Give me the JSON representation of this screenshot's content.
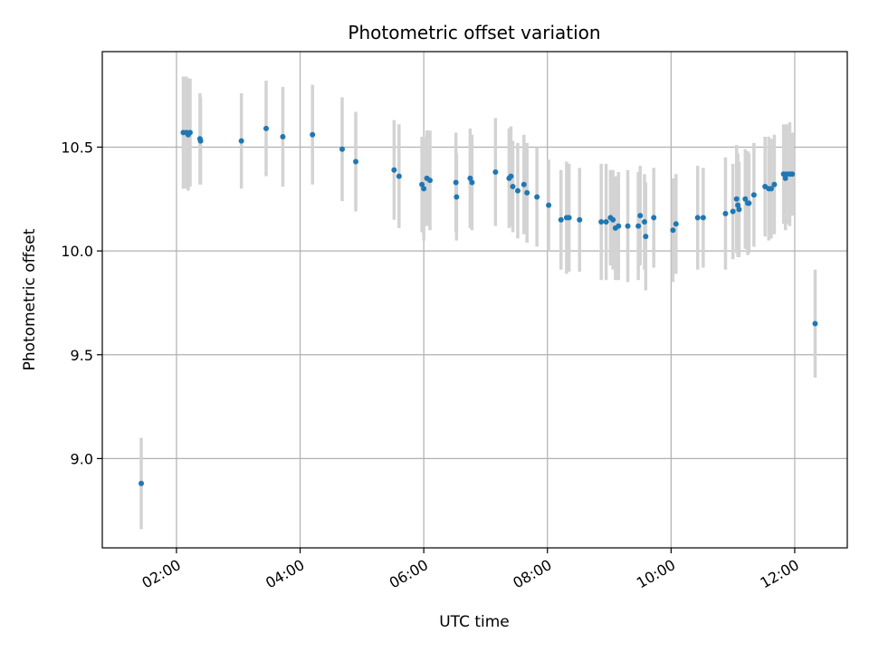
{
  "chart_data": {
    "type": "scatter",
    "title": "Photometric offset variation",
    "xlabel": "UTC time",
    "ylabel": "Photometric offset",
    "xlim": [
      0.8,
      12.85
    ],
    "ylim": [
      8.57,
      10.96
    ],
    "grid": true,
    "x_ticks": [
      {
        "value": 2,
        "label": "02:00"
      },
      {
        "value": 4,
        "label": "04:00"
      },
      {
        "value": 6,
        "label": "06:00"
      },
      {
        "value": 8,
        "label": "08:00"
      },
      {
        "value": 10,
        "label": "10:00"
      },
      {
        "value": 12,
        "label": "12:00"
      }
    ],
    "y_ticks": [
      {
        "value": 9.0,
        "label": "9.0"
      },
      {
        "value": 9.5,
        "label": "9.5"
      },
      {
        "value": 10.0,
        "label": "10.0"
      },
      {
        "value": 10.5,
        "label": "10.5"
      }
    ],
    "marker_color": "#1f77b4",
    "errorbar_color": "#d3d3d3",
    "series": [
      {
        "name": "offset",
        "x": [
          1.43,
          2.11,
          2.16,
          2.19,
          2.22,
          2.38,
          2.39,
          3.05,
          3.45,
          3.72,
          4.2,
          4.68,
          4.9,
          5.52,
          5.6,
          5.97,
          6.0,
          6.05,
          6.1,
          6.52,
          6.53,
          6.75,
          6.78,
          7.16,
          7.38,
          7.41,
          7.44,
          7.52,
          7.62,
          7.67,
          7.83,
          8.02,
          8.22,
          8.31,
          8.35,
          8.52,
          8.87,
          8.95,
          9.02,
          9.06,
          9.1,
          9.15,
          9.3,
          9.47,
          9.5,
          9.57,
          9.59,
          9.72,
          10.03,
          10.08,
          10.43,
          10.52,
          10.88,
          11.0,
          11.06,
          11.08,
          11.1,
          11.2,
          11.24,
          11.26,
          11.34,
          11.52,
          11.58,
          11.62,
          11.67,
          11.82,
          11.85,
          11.87,
          11.92,
          11.96,
          12.33
        ],
        "y": [
          8.88,
          10.57,
          10.57,
          10.56,
          10.57,
          10.54,
          10.53,
          10.53,
          10.59,
          10.55,
          10.56,
          10.49,
          10.43,
          10.39,
          10.36,
          10.32,
          10.3,
          10.35,
          10.34,
          10.33,
          10.26,
          10.35,
          10.33,
          10.38,
          10.35,
          10.36,
          10.31,
          10.29,
          10.32,
          10.28,
          10.26,
          10.22,
          10.15,
          10.16,
          10.16,
          10.15,
          10.14,
          10.14,
          10.16,
          10.15,
          10.11,
          10.12,
          10.12,
          10.12,
          10.17,
          10.14,
          10.07,
          10.16,
          10.1,
          10.13,
          10.16,
          10.16,
          10.18,
          10.19,
          10.25,
          10.22,
          10.2,
          10.25,
          10.23,
          10.23,
          10.27,
          10.31,
          10.3,
          10.3,
          10.32,
          10.37,
          10.35,
          10.37,
          10.37,
          10.37,
          9.65
        ],
        "err": [
          0.22,
          0.27,
          0.27,
          0.27,
          0.26,
          0.22,
          0.21,
          0.23,
          0.23,
          0.24,
          0.24,
          0.25,
          0.24,
          0.24,
          0.25,
          0.23,
          0.25,
          0.23,
          0.24,
          0.24,
          0.21,
          0.24,
          0.23,
          0.26,
          0.24,
          0.24,
          0.22,
          0.23,
          0.24,
          0.24,
          0.24,
          0.22,
          0.24,
          0.27,
          0.26,
          0.25,
          0.28,
          0.28,
          0.23,
          0.24,
          0.25,
          0.26,
          0.27,
          0.26,
          0.24,
          0.23,
          0.26,
          0.24,
          0.25,
          0.24,
          0.25,
          0.24,
          0.27,
          0.23,
          0.26,
          0.25,
          0.23,
          0.24,
          0.25,
          0.24,
          0.25,
          0.24,
          0.25,
          0.24,
          0.24,
          0.24,
          0.25,
          0.24,
          0.25,
          0.2,
          0.26
        ]
      }
    ]
  }
}
